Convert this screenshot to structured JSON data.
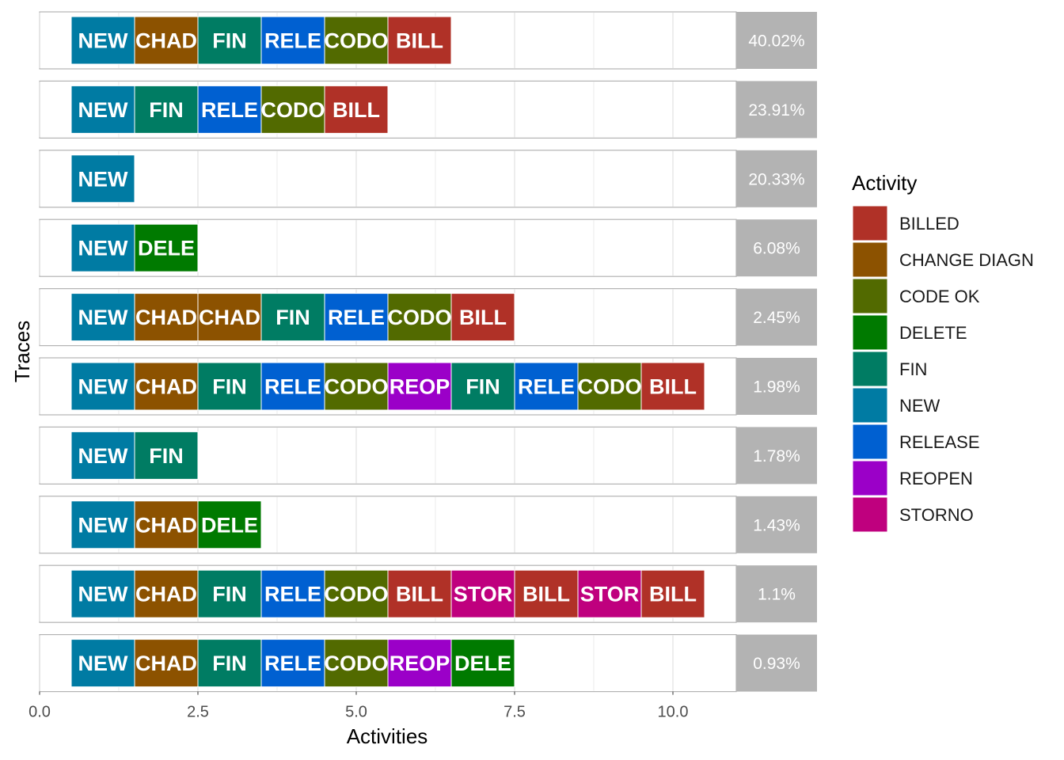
{
  "chart_data": {
    "type": "bar",
    "xlabel": "Activities",
    "ylabel": "Traces",
    "xlim": [
      0,
      11
    ],
    "x_ticks": [
      {
        "value": 0,
        "label": "0.0"
      },
      {
        "value": 2.5,
        "label": "2.5"
      },
      {
        "value": 5,
        "label": "5.0"
      },
      {
        "value": 7.5,
        "label": "7.5"
      },
      {
        "value": 10,
        "label": "10.0"
      }
    ],
    "legend": {
      "title": "Activity",
      "position": "right",
      "items": [
        {
          "name": "BILLED",
          "color": "#B03127"
        },
        {
          "name": "CHANGE DIAGN",
          "color": "#8C5200"
        },
        {
          "name": "CODE OK",
          "color": "#526A00"
        },
        {
          "name": "DELETE",
          "color": "#007A00"
        },
        {
          "name": "FIN",
          "color": "#007C63"
        },
        {
          "name": "NEW",
          "color": "#007BA3"
        },
        {
          "name": "RELEASE",
          "color": "#0060D1"
        },
        {
          "name": "REOPEN",
          "color": "#9B00C8"
        },
        {
          "name": "STORNO",
          "color": "#BF007E"
        }
      ]
    },
    "traces": [
      {
        "percent": "40.02%",
        "activities": [
          {
            "activity": "NEW",
            "label": "NEW"
          },
          {
            "activity": "CHANGE DIAGN",
            "label": "CHAD"
          },
          {
            "activity": "FIN",
            "label": "FIN"
          },
          {
            "activity": "RELEASE",
            "label": "RELE"
          },
          {
            "activity": "CODE OK",
            "label": "CODO"
          },
          {
            "activity": "BILLED",
            "label": "BILL"
          }
        ]
      },
      {
        "percent": "23.91%",
        "activities": [
          {
            "activity": "NEW",
            "label": "NEW"
          },
          {
            "activity": "FIN",
            "label": "FIN"
          },
          {
            "activity": "RELEASE",
            "label": "RELE"
          },
          {
            "activity": "CODE OK",
            "label": "CODO"
          },
          {
            "activity": "BILLED",
            "label": "BILL"
          }
        ]
      },
      {
        "percent": "20.33%",
        "activities": [
          {
            "activity": "NEW",
            "label": "NEW"
          }
        ]
      },
      {
        "percent": "6.08%",
        "activities": [
          {
            "activity": "NEW",
            "label": "NEW"
          },
          {
            "activity": "DELETE",
            "label": "DELE"
          }
        ]
      },
      {
        "percent": "2.45%",
        "activities": [
          {
            "activity": "NEW",
            "label": "NEW"
          },
          {
            "activity": "CHANGE DIAGN",
            "label": "CHAD"
          },
          {
            "activity": "CHANGE DIAGN",
            "label": "CHAD"
          },
          {
            "activity": "FIN",
            "label": "FIN"
          },
          {
            "activity": "RELEASE",
            "label": "RELE"
          },
          {
            "activity": "CODE OK",
            "label": "CODO"
          },
          {
            "activity": "BILLED",
            "label": "BILL"
          }
        ]
      },
      {
        "percent": "1.98%",
        "activities": [
          {
            "activity": "NEW",
            "label": "NEW"
          },
          {
            "activity": "CHANGE DIAGN",
            "label": "CHAD"
          },
          {
            "activity": "FIN",
            "label": "FIN"
          },
          {
            "activity": "RELEASE",
            "label": "RELE"
          },
          {
            "activity": "CODE OK",
            "label": "CODO"
          },
          {
            "activity": "REOPEN",
            "label": "REOP"
          },
          {
            "activity": "FIN",
            "label": "FIN"
          },
          {
            "activity": "RELEASE",
            "label": "RELE"
          },
          {
            "activity": "CODE OK",
            "label": "CODO"
          },
          {
            "activity": "BILLED",
            "label": "BILL"
          }
        ]
      },
      {
        "percent": "1.78%",
        "activities": [
          {
            "activity": "NEW",
            "label": "NEW"
          },
          {
            "activity": "FIN",
            "label": "FIN"
          }
        ]
      },
      {
        "percent": "1.43%",
        "activities": [
          {
            "activity": "NEW",
            "label": "NEW"
          },
          {
            "activity": "CHANGE DIAGN",
            "label": "CHAD"
          },
          {
            "activity": "DELETE",
            "label": "DELE"
          }
        ]
      },
      {
        "percent": "1.1%",
        "activities": [
          {
            "activity": "NEW",
            "label": "NEW"
          },
          {
            "activity": "CHANGE DIAGN",
            "label": "CHAD"
          },
          {
            "activity": "FIN",
            "label": "FIN"
          },
          {
            "activity": "RELEASE",
            "label": "RELE"
          },
          {
            "activity": "CODE OK",
            "label": "CODO"
          },
          {
            "activity": "BILLED",
            "label": "BILL"
          },
          {
            "activity": "STORNO",
            "label": "STOR"
          },
          {
            "activity": "BILLED",
            "label": "BILL"
          },
          {
            "activity": "STORNO",
            "label": "STOR"
          },
          {
            "activity": "BILLED",
            "label": "BILL"
          }
        ]
      },
      {
        "percent": "0.93%",
        "activities": [
          {
            "activity": "NEW",
            "label": "NEW"
          },
          {
            "activity": "CHANGE DIAGN",
            "label": "CHAD"
          },
          {
            "activity": "FIN",
            "label": "FIN"
          },
          {
            "activity": "RELEASE",
            "label": "RELE"
          },
          {
            "activity": "CODE OK",
            "label": "CODO"
          },
          {
            "activity": "REOPEN",
            "label": "REOP"
          },
          {
            "activity": "DELETE",
            "label": "DELE"
          }
        ]
      }
    ],
    "colors": {
      "percent_box": "#B3B3B3",
      "gridline": "#DEDEDE",
      "panel_border": "#B3B3B3"
    }
  }
}
